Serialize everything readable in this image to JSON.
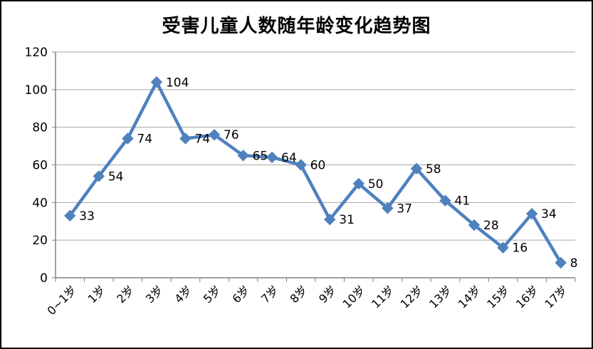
{
  "chart_data": {
    "type": "line",
    "title": "受害儿童人数随年龄变化趋势图",
    "categories": [
      "0~1岁",
      "1岁",
      "2岁",
      "3岁",
      "4岁",
      "5岁",
      "6岁",
      "7岁",
      "8岁",
      "9岁",
      "10岁",
      "11岁",
      "12岁",
      "13岁",
      "14岁",
      "15岁",
      "16岁",
      "17岁"
    ],
    "values": [
      33,
      54,
      74,
      104,
      74,
      76,
      65,
      64,
      60,
      31,
      50,
      37,
      58,
      41,
      28,
      16,
      34,
      8
    ],
    "xlabel": "",
    "ylabel": "",
    "ylim": [
      0,
      120
    ],
    "y_ticks": [
      0,
      20,
      40,
      60,
      80,
      100,
      120
    ],
    "grid": true,
    "legend": "none",
    "data_labels": true,
    "marker": "diamond",
    "line_color": "#4F81BD"
  },
  "colors": {
    "grid": "#A6A6A6",
    "axis": "#808080",
    "text": "#000000",
    "background": "#FFFFFF",
    "border": "#000000"
  }
}
